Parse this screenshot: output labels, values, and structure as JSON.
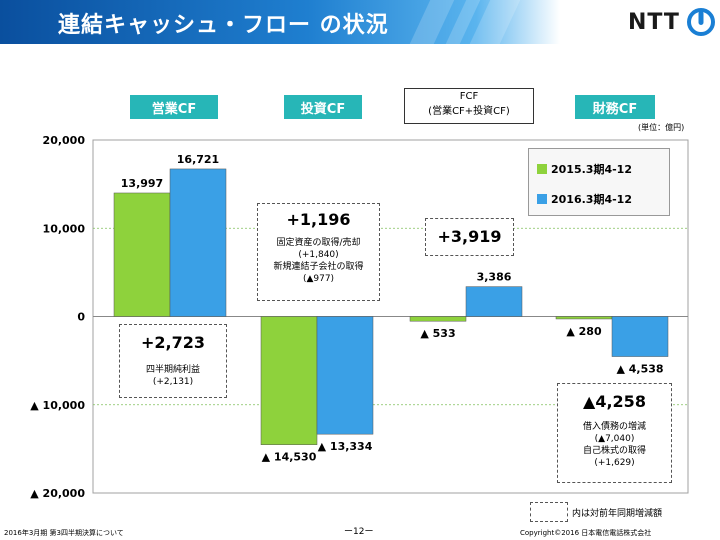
{
  "header": {
    "title": "連結キャッシュ・フロー の状況",
    "logo_text": "NTT"
  },
  "categories_labels": {
    "operating": "営業CF",
    "investing": "投資CF",
    "fcf_line1": "FCF",
    "fcf_line2": "(営業CF+投資CF)",
    "financing": "財務CF"
  },
  "unit": "(単位：億円)",
  "chart_data": {
    "type": "bar",
    "categories": [
      "営業CF",
      "投資CF",
      "FCF",
      "財務CF"
    ],
    "series": [
      {
        "name": "2015.3期4-12",
        "values": [
          13997,
          -14530,
          -533,
          -280
        ],
        "color": "#8ed23c"
      },
      {
        "name": "2016.3期4-12",
        "values": [
          16721,
          -13334,
          3386,
          -4538
        ],
        "color": "#3aa0e6"
      }
    ],
    "data_labels": [
      [
        "13,997",
        "▲ 14,530",
        "▲ 533",
        "▲ 280"
      ],
      [
        "16,721",
        "▲ 13,334",
        "3,386",
        "▲ 4,538"
      ]
    ],
    "ylim": [
      -20000,
      20000
    ],
    "yticks": [
      20000,
      10000,
      0,
      -10000,
      -20000
    ],
    "ytick_labels": [
      "20,000",
      "10,000",
      "0",
      "▲ 10,000",
      "▲ 20,000"
    ],
    "grid": true,
    "legend_position": "top-right"
  },
  "annotations": {
    "operating": {
      "big": "+2,723",
      "line1": "四半期純利益",
      "line2": "(+2,131)"
    },
    "investing": {
      "big": "+1,196",
      "line1": "固定資産の取得/売却",
      "line2": "(+1,840)",
      "line3": "新規連結子会社の取得",
      "line4": "(▲977)"
    },
    "fcf": {
      "big": "+3,919"
    },
    "financing": {
      "big": "▲4,258",
      "line1": "借入債務の増減",
      "line2": "(▲7,040)",
      "line3": "自己株式の取得",
      "line4": "(+1,629)"
    }
  },
  "note": "内は対前年同期増減額",
  "footer": {
    "left": "2016年3月期 第3四半期決算について",
    "center": "ー12ー",
    "right": "Copyright©2016 日本電信電話株式会社"
  }
}
